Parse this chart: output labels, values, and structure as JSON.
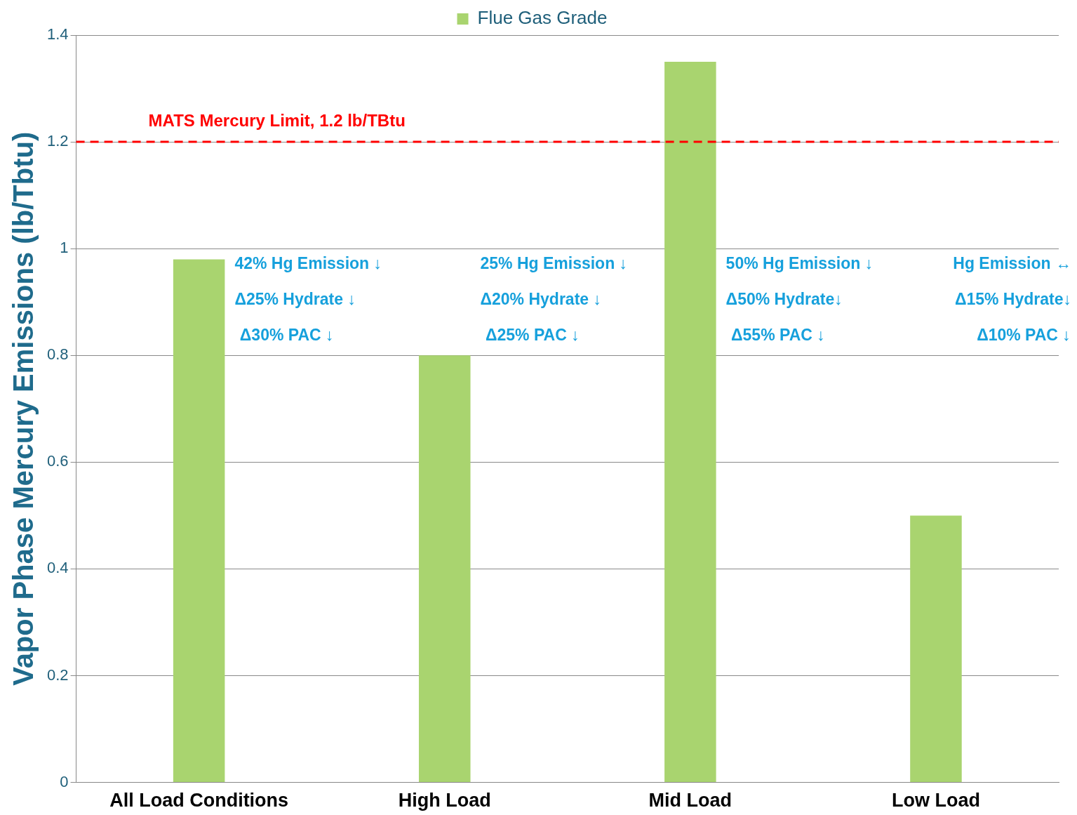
{
  "chart_data": {
    "type": "bar",
    "categories": [
      "All Load Conditions",
      "High Load",
      "Mid Load",
      "Low Load"
    ],
    "series": [
      {
        "name": "Flue Gas Grade",
        "color": "#a9d46f",
        "values": [
          0.98,
          0.8,
          1.35,
          0.5
        ]
      }
    ],
    "ylabel": "Vapor Phase Mercury Emissions (lb/Tbtu)",
    "ylim": [
      0,
      1.4
    ],
    "yticks": [
      0,
      0.2,
      0.4,
      0.6,
      0.8,
      1,
      1.2,
      1.4
    ],
    "grid": "y",
    "legend": "top",
    "ref_lines": [
      {
        "axis": "y",
        "value": 1.2,
        "label": "MATS Mercury Limit, 1.2 lb/TBtu",
        "color": "#ff0000",
        "line_style": "dashed"
      }
    ],
    "annotations": [
      "42% Hg Emission ↓",
      "Δ25% Hydrate ↓",
      "Δ30% PAC ↓",
      "25% Hg Emission ↓",
      "Δ20% Hydrate ↓",
      "Δ25% PAC ↓",
      "50% Hg Emission ↓",
      "Δ50% Hydrate↓",
      "Δ55% PAC ↓",
      "Hg Emission ↔",
      "Δ15% Hydrate↓",
      "Δ10% PAC ↓"
    ]
  }
}
